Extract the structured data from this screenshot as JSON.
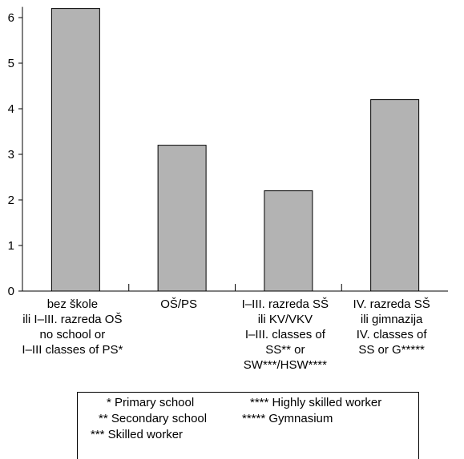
{
  "chart_data": {
    "type": "bar",
    "categories": [
      [
        "bez škole",
        "ili I–III. razreda OŠ",
        "no school or",
        "I–III classes of PS*"
      ],
      [
        "OŠ/PS"
      ],
      [
        "I–III. razreda SŠ",
        "ili KV/VKV",
        "I–III. classes of",
        "SS** or",
        "SW***/HSW****"
      ],
      [
        "IV. razreda SŠ",
        "ili gimnazija",
        "IV. classes of",
        "SS or G*****"
      ]
    ],
    "values": [
      6.2,
      3.2,
      2.2,
      4.2
    ],
    "yticks": [
      0,
      1,
      2,
      3,
      4,
      5,
      6
    ],
    "ylim": [
      0,
      6.2
    ],
    "bar_color": "#b3b3b3",
    "title": "",
    "xlabel": "",
    "ylabel": ""
  },
  "legend": {
    "items": [
      "* Primary school",
      "** Secondary school",
      "*** Skilled worker",
      "**** Highly skilled worker",
      "***** Gymnasium"
    ]
  }
}
